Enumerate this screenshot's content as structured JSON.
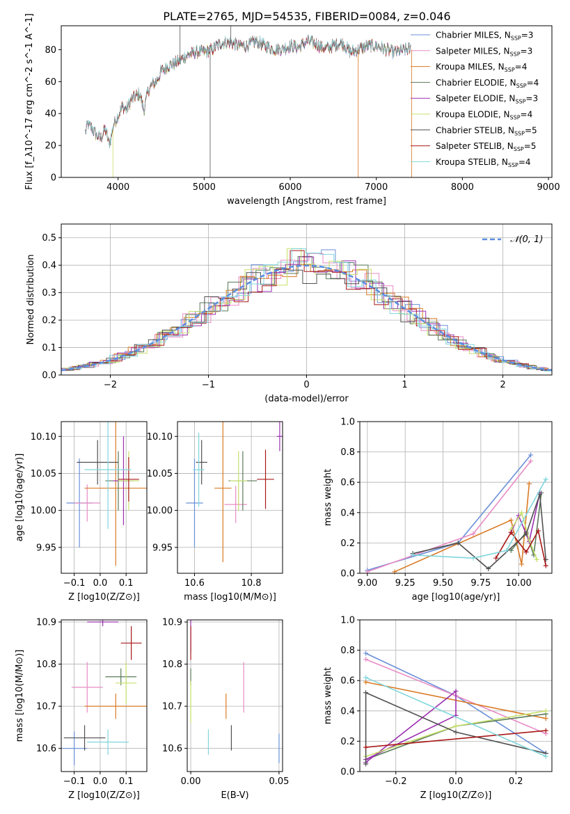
{
  "figure": {
    "title": "PLATE=2765, MJD=54535, FIBERID=0084, z=0.046"
  },
  "colors": [
    "#6a8fd8",
    "#e88bc4",
    "#d97a23",
    "#5a7a5a",
    "#9b30b0",
    "#c6e06a",
    "#505050",
    "#a81818",
    "#7fd6dc"
  ],
  "chart_data": [
    {
      "id": "spectrum",
      "type": "line",
      "title": "PLATE=2765, MJD=54535, FIBERID=0084, z=0.046",
      "xlabel": "wavelength [Angstrom, rest frame]",
      "ylabel": "Flux [f_λ10^-17 erg cm^-2 s^-1 A^-1]",
      "xlim": [
        3340,
        9040
      ],
      "ylim": [
        0,
        95
      ],
      "xticks": [
        "4000",
        "5000",
        "6000",
        "7000",
        "8000",
        "9000"
      ],
      "yticks": [
        "0",
        "20",
        "40",
        "60",
        "80"
      ],
      "grid": false,
      "legend_position": "top-right",
      "series": [
        {
          "name": "Chabrier MILES, N_SSP=3"
        },
        {
          "name": "Salpeter MILES, N_SSP=3"
        },
        {
          "name": "Kroupa MILES, N_SSP=4"
        },
        {
          "name": "Chabrier ELODIE, N_SSP=4"
        },
        {
          "name": "Salpeter ELODIE, N_SSP=3"
        },
        {
          "name": "Kroupa ELODIE, N_SSP=4"
        },
        {
          "name": "Chabrier STELIB, N_SSP=5"
        },
        {
          "name": "Salpeter STELIB, N_SSP=5"
        },
        {
          "name": "Kroupa STELIB, N_SSP=4"
        }
      ],
      "flux_envelope": {
        "x": [
          3620,
          3650,
          3700,
          3750,
          3800,
          3850,
          3900,
          3950,
          4000,
          4050,
          4100,
          4150,
          4200,
          4250,
          4300,
          4350,
          4400,
          4450,
          4500,
          4600,
          4700,
          4800,
          4900,
          5000,
          5100,
          5200,
          5300,
          5400,
          5500,
          5600,
          5700,
          5800,
          5900,
          6000,
          6100,
          6200,
          6300,
          6400,
          6500,
          6600,
          6700,
          6800,
          6900,
          7000,
          7100,
          7200,
          7300,
          7400
        ],
        "y": [
          28,
          33,
          30,
          26,
          24,
          30,
          20,
          33,
          38,
          44,
          42,
          48,
          50,
          52,
          42,
          54,
          58,
          60,
          66,
          70,
          72,
          76,
          78,
          78,
          80,
          84,
          84,
          82,
          82,
          85,
          82,
          80,
          80,
          82,
          81,
          85,
          83,
          80,
          82,
          84,
          78,
          80,
          82,
          82,
          80,
          78,
          79,
          80
        ]
      }
    },
    {
      "id": "residuals",
      "type": "step",
      "xlabel": "(data-model)/error",
      "ylabel": "Normed distribution",
      "xlim": [
        -2.5,
        2.5
      ],
      "ylim": [
        0,
        0.55
      ],
      "xticks": [
        "−2",
        "−1",
        "0",
        "1",
        "2"
      ],
      "yticks": [
        "0.0",
        "0.1",
        "0.2",
        "0.3",
        "0.4",
        "0.5"
      ],
      "grid": true,
      "legend_position": "top-right",
      "legend": [
        "𝒩(0, 1)"
      ],
      "histogram_bins": 35
    },
    {
      "id": "age-vs-Z",
      "type": "scatter",
      "xlabel": "Z [log10(Z/Z⊙)]",
      "ylabel": "age  [log10(age/yr)]",
      "xlim": [
        -0.15,
        0.18
      ],
      "ylim": [
        9.915,
        10.12
      ],
      "xticks": [
        "−0.1",
        "0.0",
        "0.1"
      ],
      "yticks": [
        "9.95",
        "10.00",
        "10.05",
        "10.10"
      ],
      "grid": true,
      "points": [
        {
          "x": -0.08,
          "y": 10.01,
          "xerr": 0.05,
          "yerr": 0.06
        },
        {
          "x": -0.05,
          "y": 10.01,
          "xerr": 0.05,
          "yerr": 0.025
        },
        {
          "x": 0.06,
          "y": 10.03,
          "xerr": 0.12,
          "yerr": 0.105
        },
        {
          "x": 0.07,
          "y": 10.04,
          "xerr": 0.05,
          "yerr": 0.04
        },
        {
          "x": 0.09,
          "y": 10.04,
          "xerr": 0.04,
          "yerr": 0.06
        },
        {
          "x": 0.11,
          "y": 10.04,
          "xerr": 0.04,
          "yerr": 0.04
        },
        {
          "x": -0.01,
          "y": 10.065,
          "xerr": 0.08,
          "yerr": 0.03
        },
        {
          "x": 0.11,
          "y": 10.042,
          "xerr": 0.04,
          "yerr": 0.03
        },
        {
          "x": 0.03,
          "y": 10.055,
          "xerr": 0.09,
          "yerr": 0.08
        }
      ]
    },
    {
      "id": "age-vs-mass",
      "type": "scatter",
      "xlabel": "mass [log10(M/M⊙)]",
      "ylabel": "",
      "xlim": [
        10.54,
        10.91
      ],
      "ylim": [
        9.915,
        10.12
      ],
      "xticks": [
        "10.6",
        "10.8"
      ],
      "yticks": [
        "9.95",
        "10.00",
        "10.05",
        "10.10"
      ],
      "grid": true,
      "points": [
        {
          "x": 10.6,
          "y": 10.01,
          "xerr": 0.03,
          "yerr": 0.06
        },
        {
          "x": 10.745,
          "y": 10.008,
          "xerr": 0.04,
          "yerr": 0.025
        },
        {
          "x": 10.7,
          "y": 10.03,
          "xerr": 0.03,
          "yerr": 0.1
        },
        {
          "x": 10.77,
          "y": 10.04,
          "xerr": 0.05,
          "yerr": 0.04
        },
        {
          "x": 10.9,
          "y": 10.1,
          "xerr": 0.01,
          "yerr": 0.02
        },
        {
          "x": 10.755,
          "y": 10.04,
          "xerr": 0.03,
          "yerr": 0.04
        },
        {
          "x": 10.625,
          "y": 10.065,
          "xerr": 0.02,
          "yerr": 0.03
        },
        {
          "x": 10.85,
          "y": 10.042,
          "xerr": 0.03,
          "yerr": 0.04
        },
        {
          "x": 10.615,
          "y": 10.055,
          "xerr": 0.02,
          "yerr": 0.05
        }
      ]
    },
    {
      "id": "weight-vs-age",
      "type": "line",
      "xlabel": "age  [log10(age/yr)]",
      "ylabel": "mass weight",
      "xlim": [
        8.95,
        10.22
      ],
      "ylim": [
        0,
        1
      ],
      "xticks": [
        "9.00",
        "9.25",
        "9.50",
        "9.75",
        "10.00"
      ],
      "yticks": [
        "0.0",
        "0.2",
        "0.4",
        "0.6",
        "0.8",
        "1.0"
      ],
      "grid": true,
      "series": [
        {
          "x": [
            9.0,
            9.6,
            10.08
          ],
          "y": [
            0.02,
            0.2,
            0.78
          ]
        },
        {
          "x": [
            9.0,
            9.7,
            10.08
          ],
          "y": [
            0.01,
            0.26,
            0.74
          ]
        },
        {
          "x": [
            9.18,
            9.95,
            10.02,
            10.07
          ],
          "y": [
            0.01,
            0.35,
            0.06,
            0.59
          ]
        },
        {
          "x": [
            9.95,
            10.05,
            10.1,
            10.15
          ],
          "y": [
            0.15,
            0.27,
            0.12,
            0.53
          ]
        },
        {
          "x": [
            9.95,
            10.0,
            10.07,
            10.14
          ],
          "y": [
            0.27,
            0.38,
            0.21,
            0.53
          ]
        },
        {
          "x": [
            9.95,
            10.02,
            10.07,
            10.12
          ],
          "y": [
            0.29,
            0.4,
            0.22,
            0.09
          ]
        },
        {
          "x": [
            9.3,
            9.6,
            9.8,
            10.05,
            10.14,
            10.18
          ],
          "y": [
            0.13,
            0.2,
            0.03,
            0.26,
            0.52,
            0.09
          ]
        },
        {
          "x": [
            9.85,
            9.95,
            10.05,
            10.13,
            10.18
          ],
          "y": [
            0.1,
            0.27,
            0.14,
            0.28,
            0.05
          ]
        },
        {
          "x": [
            9.3,
            9.7,
            9.92,
            10.18
          ],
          "y": [
            0.12,
            0.1,
            0.15,
            0.62
          ]
        }
      ]
    },
    {
      "id": "mass-vs-Z",
      "type": "scatter",
      "xlabel": "Z [log10(Z/Z⊙)]",
      "ylabel": "mass [log10(M/M⊙)]",
      "xlim": [
        -0.15,
        0.18
      ],
      "ylim": [
        10.545,
        10.905
      ],
      "xticks": [
        "−0.1",
        "0.0",
        "0.1"
      ],
      "yticks": [
        "10.6",
        "10.7",
        "10.8",
        "10.9"
      ],
      "grid": true,
      "points": [
        {
          "x": -0.1,
          "y": 10.6,
          "xerr": 0.05,
          "yerr": 0.04
        },
        {
          "x": -0.05,
          "y": 10.745,
          "xerr": 0.06,
          "yerr": 0.06
        },
        {
          "x": 0.06,
          "y": 10.7,
          "xerr": 0.12,
          "yerr": 0.03
        },
        {
          "x": 0.08,
          "y": 10.77,
          "xerr": 0.06,
          "yerr": 0.02
        },
        {
          "x": 0.01,
          "y": 10.9,
          "xerr": 0.06,
          "yerr": 0.01
        },
        {
          "x": 0.1,
          "y": 10.755,
          "xerr": 0.04,
          "yerr": 0.05
        },
        {
          "x": -0.06,
          "y": 10.625,
          "xerr": 0.08,
          "yerr": 0.03
        },
        {
          "x": 0.12,
          "y": 10.85,
          "xerr": 0.04,
          "yerr": 0.04
        },
        {
          "x": 0.03,
          "y": 10.615,
          "xerr": 0.08,
          "yerr": 0.03
        }
      ]
    },
    {
      "id": "mass-vs-EBV",
      "type": "scatter",
      "xlabel": "E(B-V)",
      "ylabel": "",
      "xlim": [
        -0.002,
        0.052
      ],
      "ylim": [
        10.545,
        10.905
      ],
      "xticks": [
        "0.00",
        "0.05"
      ],
      "yticks": [
        "10.6",
        "10.7",
        "10.8",
        "10.9"
      ],
      "grid": true,
      "points": [
        {
          "x": 0.05,
          "y": 10.6,
          "xerr": 0,
          "yerr": 0.035
        },
        {
          "x": 0.03,
          "y": 10.745,
          "xerr": 0,
          "yerr": 0.06
        },
        {
          "x": 0.02,
          "y": 10.7,
          "xerr": 0,
          "yerr": 0.03
        },
        {
          "x": 0.0,
          "y": 10.77,
          "xerr": 0,
          "yerr": 0.02
        },
        {
          "x": 0.0,
          "y": 10.87,
          "xerr": 0,
          "yerr": 0.04
        },
        {
          "x": 0.0,
          "y": 10.71,
          "xerr": 0,
          "yerr": 0.05
        },
        {
          "x": 0.023,
          "y": 10.625,
          "xerr": 0,
          "yerr": 0.03
        },
        {
          "x": 0.0,
          "y": 10.85,
          "xerr": 0,
          "yerr": 0.04
        },
        {
          "x": 0.01,
          "y": 10.615,
          "xerr": 0,
          "yerr": 0.03
        }
      ]
    },
    {
      "id": "weight-vs-Z",
      "type": "line",
      "xlabel": "Z [log10(Z/Z⊙)]",
      "ylabel": "mass weight",
      "xlim": [
        -0.32,
        0.32
      ],
      "ylim": [
        0,
        1
      ],
      "xticks": [
        "−0.2",
        "0.0",
        "0.2"
      ],
      "yticks": [
        "0.0",
        "0.2",
        "0.4",
        "0.6",
        "0.8",
        "1.0"
      ],
      "grid": true,
      "series": [
        {
          "x": [
            -0.3,
            0.0,
            0.3
          ],
          "y": [
            0.78,
            0.5,
            0.12
          ]
        },
        {
          "x": [
            -0.3,
            0.0,
            0.3
          ],
          "y": [
            0.74,
            0.5,
            0.25
          ]
        },
        {
          "x": [
            -0.3,
            0.3
          ],
          "y": [
            0.59,
            0.35
          ]
        },
        {
          "x": [
            -0.3,
            0.0,
            0.3
          ],
          "y": [
            0.08,
            0.3,
            0.38
          ]
        },
        {
          "x": [
            -0.3,
            0.0,
            0.0,
            -0.3
          ],
          "y": [
            0.08,
            0.37,
            0.53,
            0.06
          ]
        },
        {
          "x": [
            -0.3,
            0.0,
            0.3
          ],
          "y": [
            0.1,
            0.3,
            0.4
          ]
        },
        {
          "x": [
            -0.3,
            -0.3,
            0.0,
            0.3
          ],
          "y": [
            0.05,
            0.52,
            0.26,
            0.12
          ]
        },
        {
          "x": [
            -0.3,
            0.3
          ],
          "y": [
            0.16,
            0.27
          ]
        },
        {
          "x": [
            -0.3,
            0.3
          ],
          "y": [
            0.62,
            0.1
          ]
        }
      ]
    }
  ]
}
